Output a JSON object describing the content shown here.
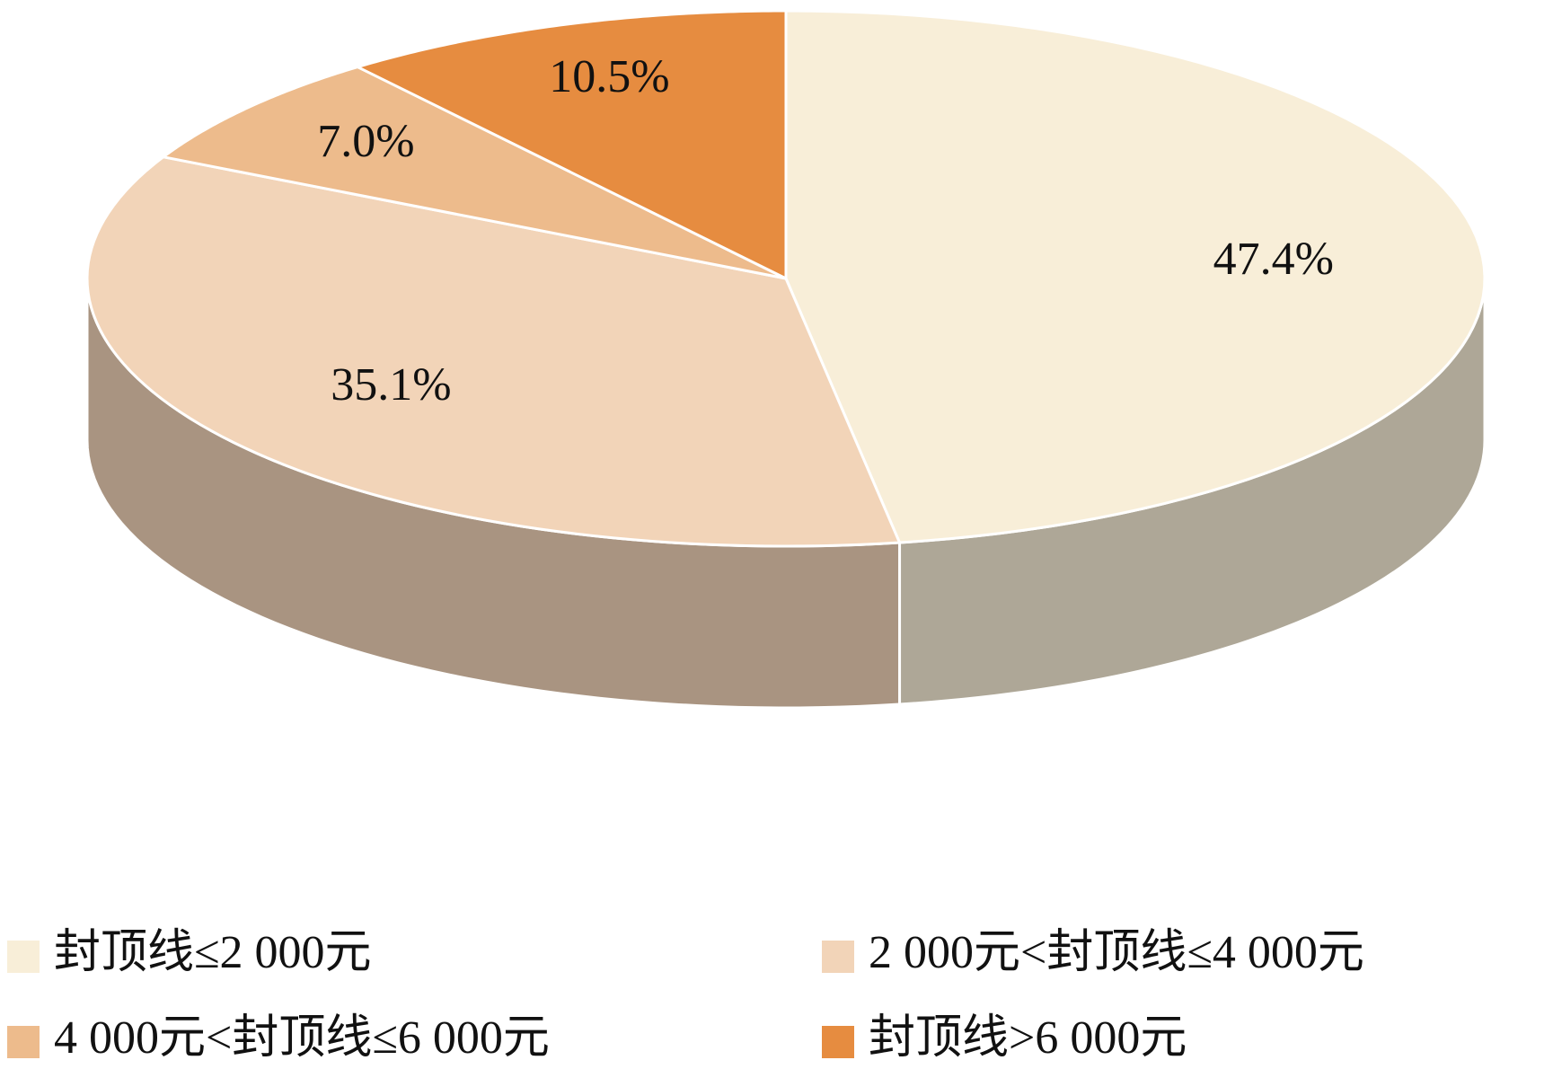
{
  "chart_data": {
    "type": "pie",
    "categories": [
      "封顶线≤2 000元",
      "2 000元<封顶线≤4 000元",
      "4 000元<封顶线≤6 000元",
      "封顶线>6 000元"
    ],
    "values": [
      47.4,
      35.1,
      7.0,
      10.5
    ],
    "value_labels": [
      "47.4%",
      "35.1%",
      "7.0%",
      "10.5%"
    ],
    "colors": [
      "#f8eed8",
      "#f2d4b8",
      "#edbb8c",
      "#e68c40"
    ]
  }
}
